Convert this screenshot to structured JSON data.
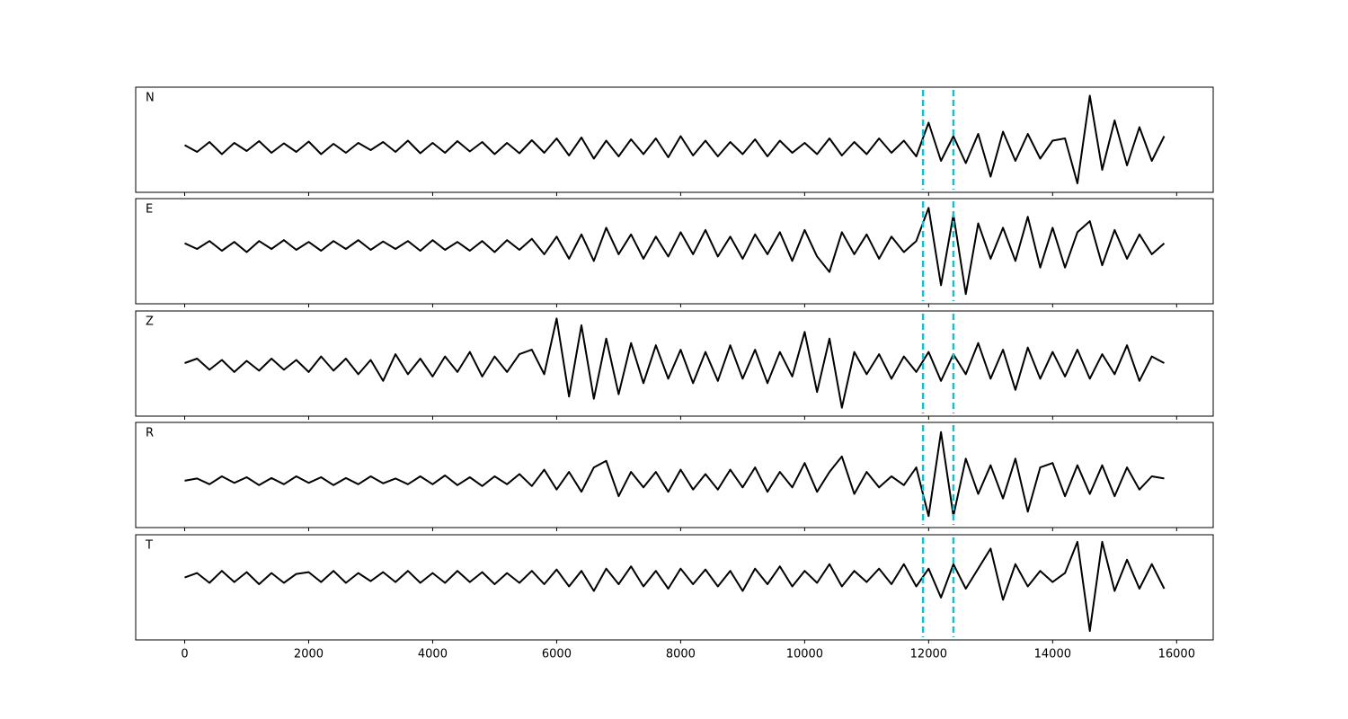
{
  "chart_data": {
    "type": "line",
    "x": [
      0,
      200,
      400,
      600,
      800,
      1000,
      1200,
      1400,
      1600,
      1800,
      2000,
      2200,
      2400,
      2600,
      2800,
      3000,
      3200,
      3400,
      3600,
      3800,
      4000,
      4200,
      4400,
      4600,
      4800,
      5000,
      5200,
      5400,
      5600,
      5800,
      6000,
      6200,
      6400,
      6600,
      6800,
      7000,
      7200,
      7400,
      7600,
      7800,
      8000,
      8200,
      8400,
      8600,
      8800,
      9000,
      9200,
      9400,
      9600,
      9800,
      10000,
      10200,
      10400,
      10600,
      10800,
      11000,
      11200,
      11400,
      11600,
      11800,
      12000,
      12200,
      12400,
      12600,
      12800,
      13000,
      13200,
      13400,
      13600,
      13800,
      14000,
      14200,
      14400,
      14600,
      14800,
      15000,
      15200,
      15400,
      15600,
      15800
    ],
    "xlim": [
      -790,
      16590
    ],
    "xticks": [
      0,
      2000,
      4000,
      6000,
      8000,
      10000,
      12000,
      14000,
      16000
    ],
    "series": [
      {
        "name": "N",
        "color": "#000000",
        "ylim": [
          -1.0,
          1.34
        ],
        "values": [
          0.05,
          -0.1,
          0.12,
          -0.15,
          0.1,
          -0.08,
          0.14,
          -0.12,
          0.09,
          -0.1,
          0.13,
          -0.15,
          0.08,
          -0.12,
          0.1,
          -0.06,
          0.12,
          -0.1,
          0.15,
          -0.13,
          0.1,
          -0.12,
          0.14,
          -0.09,
          0.12,
          -0.15,
          0.1,
          -0.13,
          0.16,
          -0.12,
          0.2,
          -0.18,
          0.22,
          -0.25,
          0.15,
          -0.2,
          0.18,
          -0.15,
          0.2,
          -0.22,
          0.25,
          -0.18,
          0.15,
          -0.2,
          0.12,
          -0.15,
          0.18,
          -0.2,
          0.15,
          -0.12,
          0.1,
          -0.15,
          0.2,
          -0.18,
          0.12,
          -0.15,
          0.2,
          -0.12,
          0.15,
          -0.2,
          0.55,
          -0.3,
          0.25,
          -0.35,
          0.3,
          -0.65,
          0.35,
          -0.3,
          0.3,
          -0.25,
          0.15,
          0.2,
          -0.8,
          1.15,
          -0.5,
          0.6,
          -0.4,
          0.45,
          -0.3,
          0.25
        ]
      },
      {
        "name": "E",
        "color": "#000000",
        "ylim": [
          -1.32,
          1.06
        ],
        "values": [
          0.05,
          -0.08,
          0.1,
          -0.12,
          0.08,
          -0.15,
          0.1,
          -0.08,
          0.12,
          -0.1,
          0.08,
          -0.12,
          0.1,
          -0.08,
          0.12,
          -0.1,
          0.09,
          -0.08,
          0.1,
          -0.12,
          0.12,
          -0.1,
          0.08,
          -0.12,
          0.1,
          -0.15,
          0.12,
          -0.1,
          0.15,
          -0.2,
          0.2,
          -0.3,
          0.25,
          -0.35,
          0.4,
          -0.2,
          0.25,
          -0.3,
          0.2,
          -0.25,
          0.3,
          -0.2,
          0.35,
          -0.25,
          0.2,
          -0.3,
          0.25,
          -0.2,
          0.3,
          -0.35,
          0.35,
          -0.25,
          -0.6,
          0.3,
          -0.2,
          0.25,
          -0.3,
          0.2,
          -0.15,
          0.1,
          0.85,
          -0.9,
          0.7,
          -1.1,
          0.5,
          -0.3,
          0.4,
          -0.35,
          0.65,
          -0.5,
          0.4,
          -0.5,
          0.3,
          0.55,
          -0.45,
          0.35,
          -0.3,
          0.25,
          -0.2,
          0.05
        ]
      },
      {
        "name": "Z",
        "color": "#000000",
        "ylim": [
          -1.14,
          1.22
        ],
        "values": [
          0.05,
          0.15,
          -0.1,
          0.12,
          -0.15,
          0.1,
          -0.12,
          0.15,
          -0.1,
          0.12,
          -0.15,
          0.2,
          -0.12,
          0.15,
          -0.2,
          0.12,
          -0.35,
          0.25,
          -0.2,
          0.15,
          -0.25,
          0.2,
          -0.15,
          0.3,
          -0.25,
          0.2,
          -0.15,
          0.25,
          0.35,
          -0.2,
          1.05,
          -0.7,
          0.9,
          -0.75,
          0.6,
          -0.65,
          0.5,
          -0.4,
          0.45,
          -0.3,
          0.35,
          -0.4,
          0.3,
          -0.35,
          0.45,
          -0.3,
          0.35,
          -0.4,
          0.3,
          -0.25,
          0.75,
          -0.6,
          0.6,
          -0.95,
          0.3,
          -0.2,
          0.25,
          -0.3,
          0.2,
          -0.15,
          0.3,
          -0.35,
          0.25,
          -0.2,
          0.5,
          -0.3,
          0.35,
          -0.55,
          0.4,
          -0.3,
          0.3,
          -0.25,
          0.35,
          -0.3,
          0.25,
          -0.2,
          0.45,
          -0.35,
          0.2,
          0.05
        ]
      },
      {
        "name": "R",
        "color": "#000000",
        "ylim": [
          -1.06,
          1.32
        ],
        "values": [
          0.0,
          0.05,
          -0.08,
          0.1,
          -0.05,
          0.08,
          -0.1,
          0.06,
          -0.08,
          0.1,
          -0.05,
          0.08,
          -0.1,
          0.06,
          -0.08,
          0.1,
          -0.06,
          0.05,
          -0.08,
          0.1,
          -0.08,
          0.12,
          -0.1,
          0.08,
          -0.12,
          0.1,
          -0.08,
          0.15,
          -0.12,
          0.25,
          -0.2,
          0.2,
          -0.25,
          0.3,
          0.45,
          -0.35,
          0.2,
          -0.15,
          0.2,
          -0.25,
          0.25,
          -0.2,
          0.15,
          -0.2,
          0.25,
          -0.15,
          0.3,
          -0.25,
          0.2,
          -0.15,
          0.4,
          -0.25,
          0.2,
          0.55,
          -0.3,
          0.2,
          -0.15,
          0.1,
          -0.1,
          0.3,
          -0.8,
          1.1,
          -0.8,
          0.5,
          -0.3,
          0.35,
          -0.4,
          0.5,
          -0.7,
          0.3,
          0.4,
          -0.35,
          0.35,
          -0.3,
          0.35,
          -0.35,
          0.3,
          -0.2,
          0.1,
          0.05
        ]
      },
      {
        "name": "T",
        "color": "#000000",
        "ylim": [
          -1.4,
          0.96
        ],
        "values": [
          0.0,
          0.1,
          -0.12,
          0.15,
          -0.1,
          0.12,
          -0.15,
          0.1,
          -0.12,
          0.08,
          0.12,
          -0.1,
          0.15,
          -0.12,
          0.1,
          -0.08,
          0.12,
          -0.1,
          0.15,
          -0.12,
          0.1,
          -0.12,
          0.15,
          -0.1,
          0.12,
          -0.15,
          0.1,
          -0.12,
          0.15,
          -0.15,
          0.18,
          -0.2,
          0.15,
          -0.3,
          0.2,
          -0.15,
          0.25,
          -0.2,
          0.15,
          -0.25,
          0.2,
          -0.15,
          0.18,
          -0.2,
          0.15,
          -0.3,
          0.2,
          -0.15,
          0.25,
          -0.2,
          0.15,
          -0.12,
          0.3,
          -0.2,
          0.15,
          -0.1,
          0.2,
          -0.15,
          0.3,
          -0.2,
          0.2,
          -0.45,
          0.3,
          -0.25,
          0.2,
          0.65,
          -0.5,
          0.3,
          -0.2,
          0.15,
          -0.1,
          0.1,
          0.8,
          -1.2,
          0.8,
          -0.3,
          0.4,
          -0.25,
          0.3,
          -0.25
        ]
      }
    ],
    "vlines": {
      "color": "#17becf",
      "x": [
        11910,
        12400
      ]
    }
  }
}
